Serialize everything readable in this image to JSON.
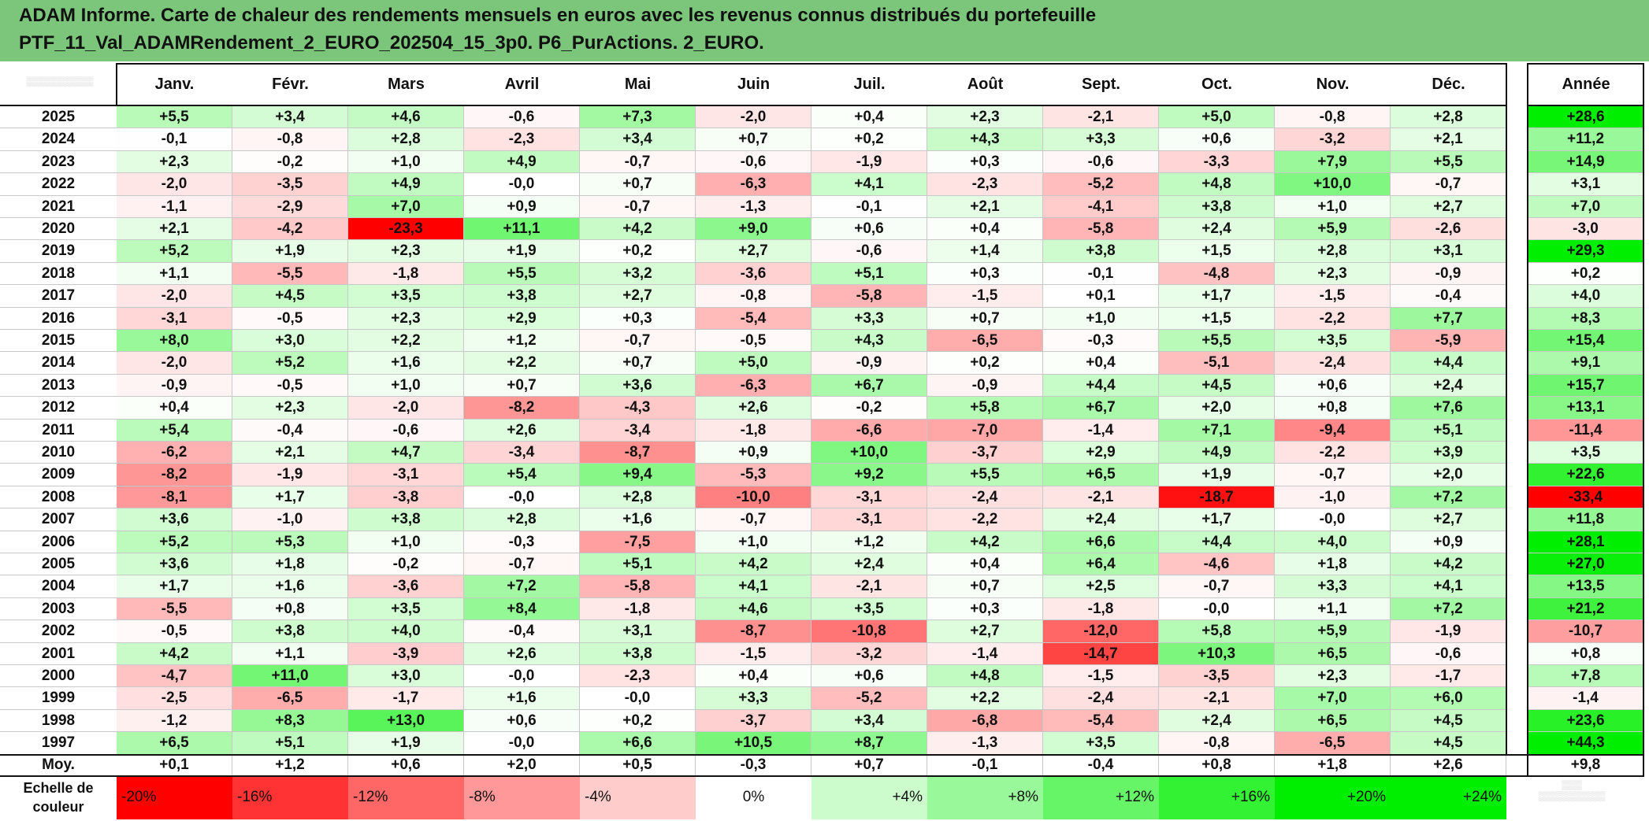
{
  "title": {
    "line1": "ADAM Informe. Carte de chaleur des rendements mensuels en euros avec les revenus connus distribués du portefeuille",
    "line2": "PTF_11_Val_ADAMRendement_2_EURO_202504_15_3p0. P6_PurActions. 2_EURO."
  },
  "colors": {
    "title_bg": "#7cc67c",
    "negative_max": "#ff0000",
    "positive_max": "#00ee00",
    "neutral": "#ffffff"
  },
  "chart_data": {
    "type": "heatmap",
    "columns": [
      "Janv.",
      "Févr.",
      "Mars",
      "Avril",
      "Mai",
      "Juin",
      "Juil.",
      "Août",
      "Sept.",
      "Oct.",
      "Nov.",
      "Déc."
    ],
    "year_column": "Année",
    "rows": [
      {
        "year": "2025",
        "values": [
          "+5,5",
          "+3,4",
          "+4,6",
          "-0,6",
          "+7,3",
          "-2,0",
          "+0,4",
          "+2,3",
          "-2,1",
          "+5,0",
          "-0,8",
          "+2,8"
        ],
        "total": "+28,6"
      },
      {
        "year": "2024",
        "values": [
          "-0,1",
          "-0,8",
          "+2,8",
          "-2,3",
          "+3,4",
          "+0,7",
          "+0,2",
          "+4,3",
          "+3,3",
          "+0,6",
          "-3,2",
          "+2,1"
        ],
        "total": "+11,2"
      },
      {
        "year": "2023",
        "values": [
          "+2,3",
          "-0,2",
          "+1,0",
          "+4,9",
          "-0,7",
          "-0,6",
          "-1,9",
          "+0,3",
          "-0,6",
          "-3,3",
          "+7,9",
          "+5,5"
        ],
        "total": "+14,9"
      },
      {
        "year": "2022",
        "values": [
          "-2,0",
          "-3,5",
          "+4,9",
          "-0,0",
          "+0,7",
          "-6,3",
          "+4,1",
          "-2,3",
          "-5,2",
          "+4,8",
          "+10,0",
          "-0,7"
        ],
        "total": "+3,1"
      },
      {
        "year": "2021",
        "values": [
          "-1,1",
          "-2,9",
          "+7,0",
          "+0,9",
          "-0,7",
          "-1,3",
          "-0,1",
          "+2,1",
          "-4,1",
          "+3,8",
          "+1,0",
          "+2,7"
        ],
        "total": "+7,0"
      },
      {
        "year": "2020",
        "values": [
          "+2,1",
          "-4,2",
          "-23,3",
          "+11,1",
          "+4,2",
          "+9,0",
          "+0,6",
          "+0,4",
          "-5,8",
          "+2,4",
          "+5,9",
          "-2,6"
        ],
        "total": "-3,0"
      },
      {
        "year": "2019",
        "values": [
          "+5,2",
          "+1,9",
          "+2,3",
          "+1,9",
          "+0,2",
          "+2,7",
          "-0,6",
          "+1,4",
          "+3,8",
          "+1,5",
          "+2,8",
          "+3,1"
        ],
        "total": "+29,3"
      },
      {
        "year": "2018",
        "values": [
          "+1,1",
          "-5,5",
          "-1,8",
          "+5,5",
          "+3,2",
          "-3,6",
          "+5,1",
          "+0,3",
          "-0,1",
          "-4,8",
          "+2,3",
          "-0,9"
        ],
        "total": "+0,2"
      },
      {
        "year": "2017",
        "values": [
          "-2,0",
          "+4,5",
          "+3,5",
          "+3,8",
          "+2,7",
          "-0,8",
          "-5,8",
          "-1,5",
          "+0,1",
          "+1,7",
          "-1,5",
          "-0,4"
        ],
        "total": "+4,0"
      },
      {
        "year": "2016",
        "values": [
          "-3,1",
          "-0,5",
          "+2,3",
          "+2,9",
          "+0,3",
          "-5,4",
          "+3,3",
          "+0,7",
          "+1,0",
          "+1,5",
          "-2,2",
          "+7,7"
        ],
        "total": "+8,3"
      },
      {
        "year": "2015",
        "values": [
          "+8,0",
          "+3,0",
          "+2,2",
          "+1,2",
          "-0,7",
          "-0,5",
          "+4,3",
          "-6,5",
          "-0,3",
          "+5,5",
          "+3,5",
          "-5,9"
        ],
        "total": "+15,4"
      },
      {
        "year": "2014",
        "values": [
          "-2,0",
          "+5,2",
          "+1,6",
          "+2,2",
          "+0,7",
          "+5,0",
          "-0,9",
          "+0,2",
          "+0,4",
          "-5,1",
          "-2,4",
          "+4,4"
        ],
        "total": "+9,1"
      },
      {
        "year": "2013",
        "values": [
          "-0,9",
          "-0,5",
          "+1,0",
          "+0,7",
          "+3,6",
          "-6,3",
          "+6,7",
          "-0,9",
          "+4,4",
          "+4,5",
          "+0,6",
          "+2,4"
        ],
        "total": "+15,7"
      },
      {
        "year": "2012",
        "values": [
          "+0,4",
          "+2,3",
          "-2,0",
          "-8,2",
          "-4,3",
          "+2,6",
          "-0,2",
          "+5,8",
          "+6,7",
          "+2,0",
          "+0,8",
          "+7,6"
        ],
        "total": "+13,1"
      },
      {
        "year": "2011",
        "values": [
          "+5,4",
          "-0,4",
          "-0,6",
          "+2,6",
          "-3,4",
          "-1,8",
          "-6,6",
          "-7,0",
          "-1,4",
          "+7,1",
          "-9,4",
          "+5,1"
        ],
        "total": "-11,4"
      },
      {
        "year": "2010",
        "values": [
          "-6,2",
          "+2,1",
          "+4,7",
          "-3,4",
          "-8,7",
          "+0,9",
          "+10,0",
          "-3,7",
          "+2,9",
          "+4,9",
          "-2,2",
          "+3,9"
        ],
        "total": "+3,5"
      },
      {
        "year": "2009",
        "values": [
          "-8,2",
          "-1,9",
          "-3,1",
          "+5,4",
          "+9,4",
          "-5,3",
          "+9,2",
          "+5,5",
          "+6,5",
          "+1,9",
          "-0,7",
          "+2,0"
        ],
        "total": "+22,6"
      },
      {
        "year": "2008",
        "values": [
          "-8,1",
          "+1,7",
          "-3,8",
          "-0,0",
          "+2,8",
          "-10,0",
          "-3,1",
          "-2,4",
          "-2,1",
          "-18,7",
          "-1,0",
          "+7,2"
        ],
        "total": "-33,4"
      },
      {
        "year": "2007",
        "values": [
          "+3,6",
          "-1,0",
          "+3,8",
          "+2,8",
          "+1,6",
          "-0,7",
          "-3,1",
          "-2,2",
          "+2,4",
          "+1,7",
          "-0,0",
          "+2,7"
        ],
        "total": "+11,8"
      },
      {
        "year": "2006",
        "values": [
          "+5,2",
          "+5,3",
          "+1,0",
          "-0,3",
          "-7,5",
          "+1,0",
          "+1,2",
          "+4,2",
          "+6,6",
          "+4,4",
          "+4,0",
          "+0,9"
        ],
        "total": "+28,1"
      },
      {
        "year": "2005",
        "values": [
          "+3,6",
          "+1,8",
          "-0,2",
          "-0,7",
          "+5,1",
          "+4,2",
          "+2,4",
          "+0,4",
          "+6,4",
          "-4,6",
          "+1,8",
          "+4,2"
        ],
        "total": "+27,0"
      },
      {
        "year": "2004",
        "values": [
          "+1,7",
          "+1,6",
          "-3,6",
          "+7,2",
          "-5,8",
          "+4,1",
          "-2,1",
          "+0,7",
          "+2,5",
          "-0,7",
          "+3,3",
          "+4,1"
        ],
        "total": "+13,5"
      },
      {
        "year": "2003",
        "values": [
          "-5,5",
          "+0,8",
          "+3,5",
          "+8,4",
          "-1,8",
          "+4,6",
          "+3,5",
          "+0,3",
          "-1,8",
          "-0,0",
          "+1,1",
          "+7,2"
        ],
        "total": "+21,2"
      },
      {
        "year": "2002",
        "values": [
          "-0,5",
          "+3,8",
          "+4,0",
          "-0,4",
          "+3,1",
          "-8,7",
          "-10,8",
          "+2,7",
          "-12,0",
          "+5,8",
          "+5,9",
          "-1,9"
        ],
        "total": "-10,7"
      },
      {
        "year": "2001",
        "values": [
          "+4,2",
          "+1,1",
          "-3,9",
          "+2,6",
          "+3,8",
          "-1,5",
          "-3,2",
          "-1,4",
          "-14,7",
          "+10,3",
          "+6,5",
          "-0,6"
        ],
        "total": "+0,8"
      },
      {
        "year": "2000",
        "values": [
          "-4,7",
          "+11,0",
          "+3,0",
          "-0,0",
          "-2,3",
          "+0,4",
          "+0,6",
          "+4,8",
          "-1,5",
          "-3,5",
          "+2,3",
          "-1,7"
        ],
        "total": "+7,8"
      },
      {
        "year": "1999",
        "values": [
          "-2,5",
          "-6,5",
          "-1,7",
          "+1,6",
          "-0,0",
          "+3,3",
          "-5,2",
          "+2,2",
          "-2,4",
          "-2,1",
          "+7,0",
          "+6,0"
        ],
        "total": "-1,4"
      },
      {
        "year": "1998",
        "values": [
          "-1,2",
          "+8,3",
          "+13,0",
          "+0,6",
          "+0,2",
          "-3,7",
          "+3,4",
          "-6,8",
          "-5,4",
          "+2,4",
          "+6,5",
          "+4,5"
        ],
        "total": "+23,6"
      },
      {
        "year": "1997",
        "values": [
          "+6,5",
          "+5,1",
          "+1,9",
          "-0,0",
          "+6,6",
          "+10,5",
          "+8,7",
          "-1,3",
          "+3,5",
          "-0,8",
          "-6,5",
          "+4,5"
        ],
        "total": "+44,3"
      }
    ],
    "average": {
      "label": "Moy.",
      "values": [
        "+0,1",
        "+1,2",
        "+0,6",
        "+2,0",
        "+0,5",
        "-0,3",
        "+0,7",
        "-0,1",
        "-0,4",
        "+0,8",
        "+1,8",
        "+2,6"
      ],
      "total": "+9,8"
    },
    "scale": {
      "label_line1": "Echelle de",
      "label_line2": "couleur",
      "steps": [
        "-20%",
        "-16%",
        "-12%",
        "-8%",
        "-4%",
        "0%",
        "+4%",
        "+8%",
        "+12%",
        "+16%",
        "+20%",
        "+24%"
      ]
    }
  }
}
